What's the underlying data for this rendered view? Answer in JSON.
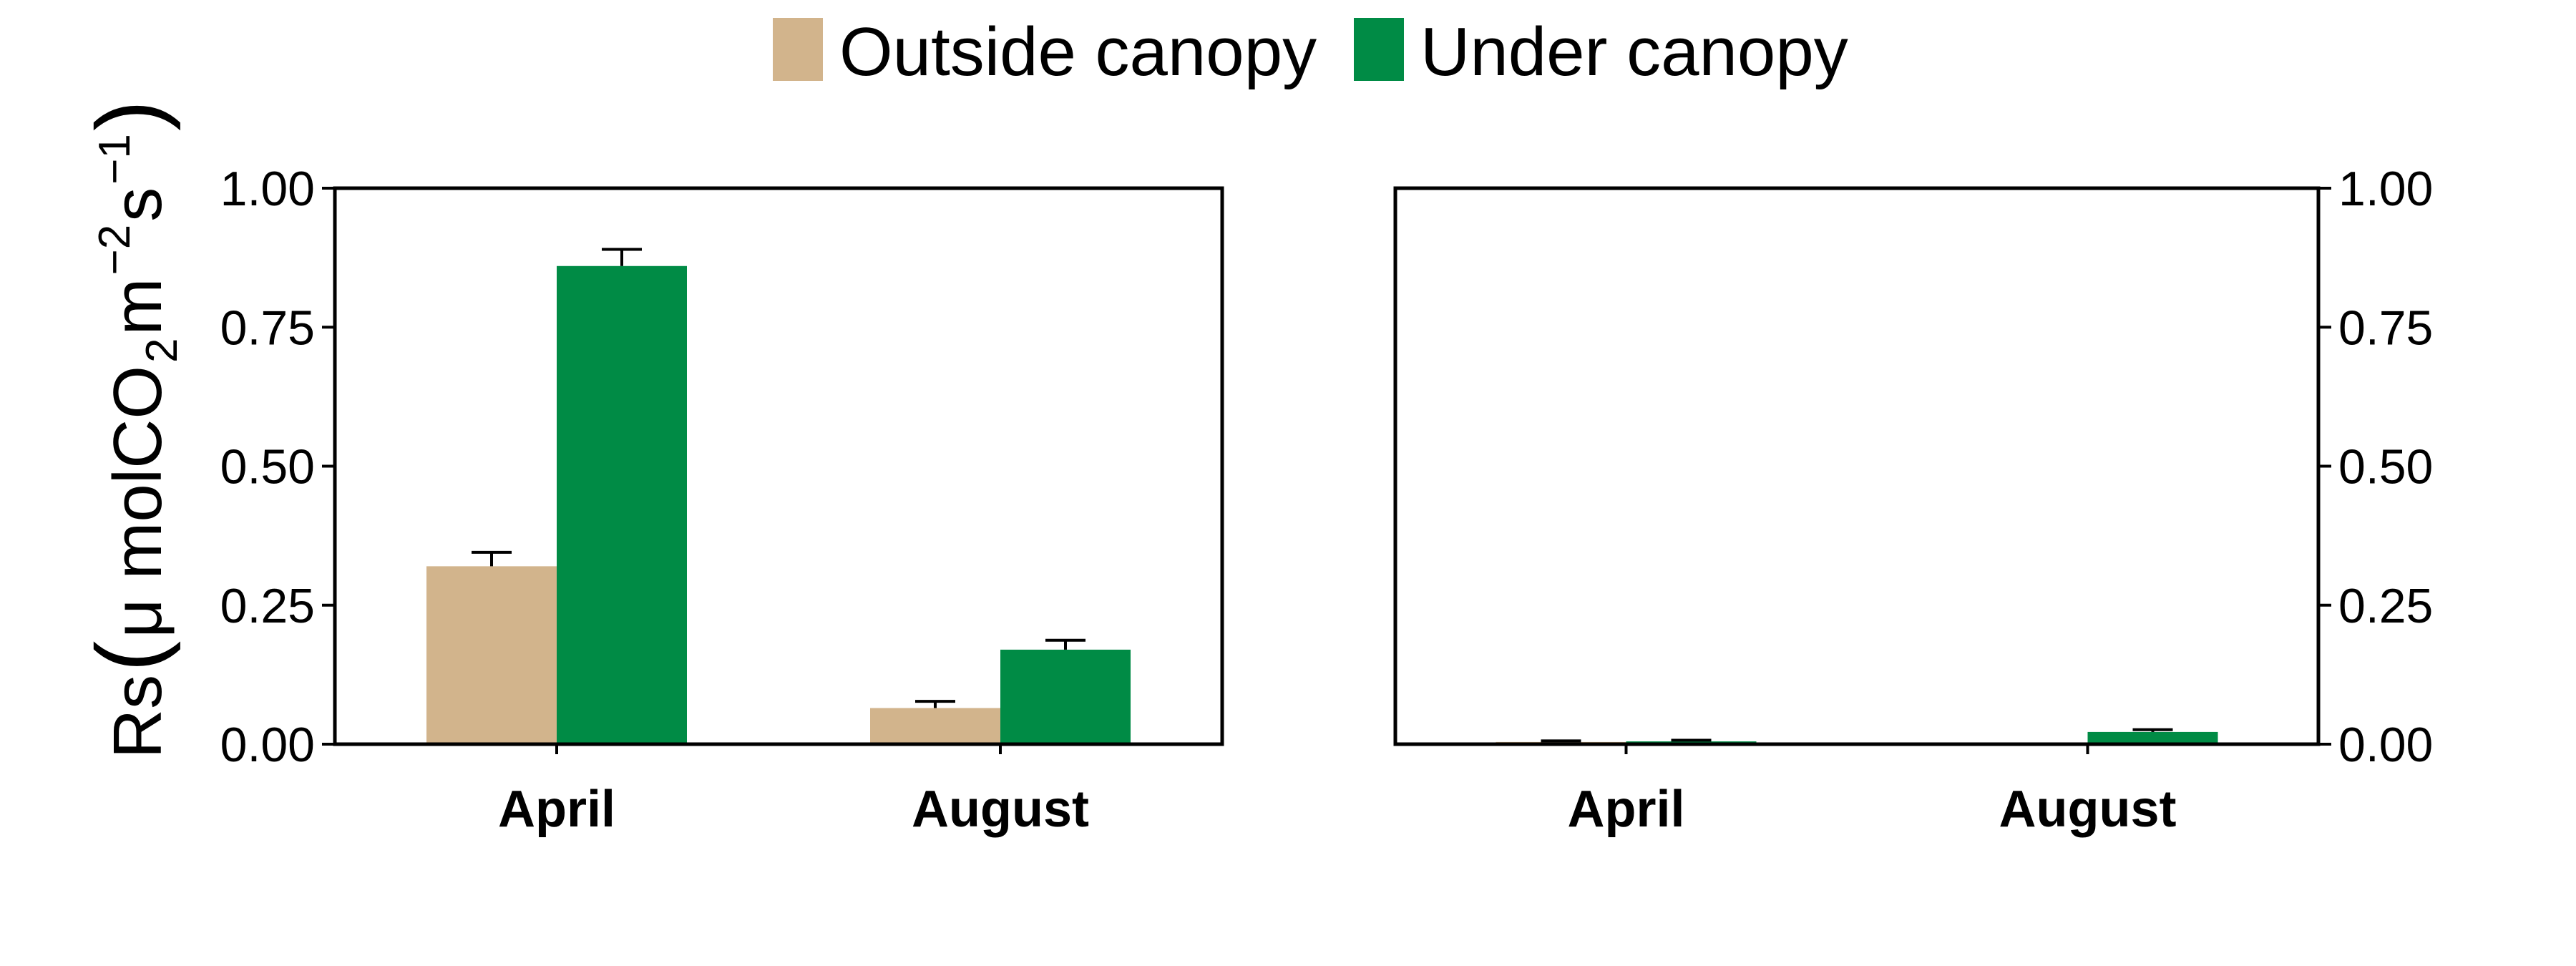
{
  "legend": {
    "items": [
      {
        "label": "Outside canopy",
        "color": "#D2B48C"
      },
      {
        "label": "Under canopy",
        "color": "#008B45"
      }
    ]
  },
  "ylabel": {
    "prefix": "Rs",
    "open": "(",
    "unit_main": "μ molCO",
    "co2_sub": "2",
    "unit_m": " m",
    "m_exp": "−2",
    "unit_s": " s",
    "s_exp": "−1",
    "close": ")"
  },
  "chart_data": [
    {
      "type": "bar",
      "categories": [
        "April",
        "August"
      ],
      "series": [
        {
          "name": "Outside canopy",
          "values": [
            0.32,
            0.065
          ],
          "errors": [
            0.025,
            0.012
          ]
        },
        {
          "name": "Under canopy",
          "values": [
            0.86,
            0.17
          ],
          "errors": [
            0.03,
            0.017
          ]
        }
      ],
      "ylim": [
        0,
        1
      ],
      "yticks": [
        "0.00",
        "0.25",
        "0.50",
        "0.75",
        "1.00"
      ],
      "yaxis_side": "left"
    },
    {
      "type": "bar",
      "categories": [
        "April",
        "August"
      ],
      "series": [
        {
          "name": "Outside canopy",
          "values": [
            0.004,
            0.0
          ],
          "errors": [
            0.002,
            0.0
          ]
        },
        {
          "name": "Under canopy",
          "values": [
            0.005,
            0.022
          ],
          "errors": [
            0.002,
            0.004
          ]
        }
      ],
      "ylim": [
        0,
        1
      ],
      "yticks": [
        "0.00",
        "0.25",
        "0.50",
        "0.75",
        "1.00"
      ],
      "yaxis_side": "right"
    }
  ]
}
